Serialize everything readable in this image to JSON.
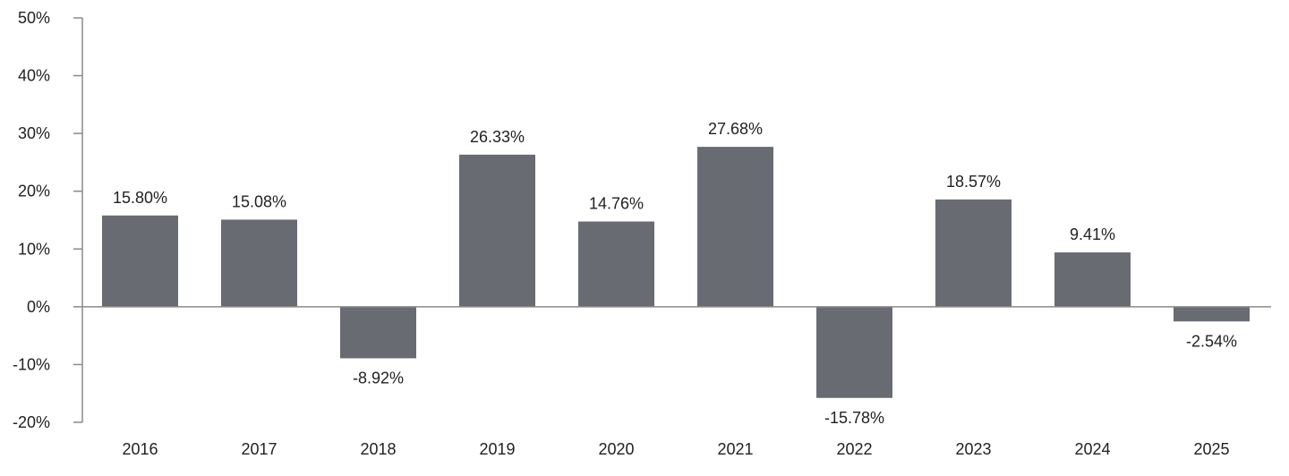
{
  "chart_data": {
    "type": "bar",
    "title": "",
    "xlabel": "",
    "ylabel": "",
    "categories": [
      "2016",
      "2017",
      "2018",
      "2019",
      "2020",
      "2021",
      "2022",
      "2023",
      "2024",
      "2025"
    ],
    "values": [
      15.8,
      15.08,
      -8.92,
      26.33,
      14.76,
      27.68,
      -15.78,
      18.57,
      9.41,
      -2.54
    ],
    "value_labels": [
      "15.80%",
      "15.08%",
      "-8.92%",
      "26.33%",
      "14.76%",
      "27.68%",
      "-15.78%",
      "18.57%",
      "9.41%",
      "-2.54%"
    ],
    "ylim": [
      -20,
      50
    ],
    "yticks": [
      50,
      40,
      30,
      20,
      10,
      0,
      -10,
      -20
    ],
    "ytick_labels": [
      "50%",
      "40%",
      "30%",
      "20%",
      "10%",
      "0%",
      "-10%",
      "-20%"
    ],
    "grid": false,
    "legend": "none",
    "colors": {
      "bar": "#686c72",
      "axis": "#8a8a8a"
    }
  }
}
